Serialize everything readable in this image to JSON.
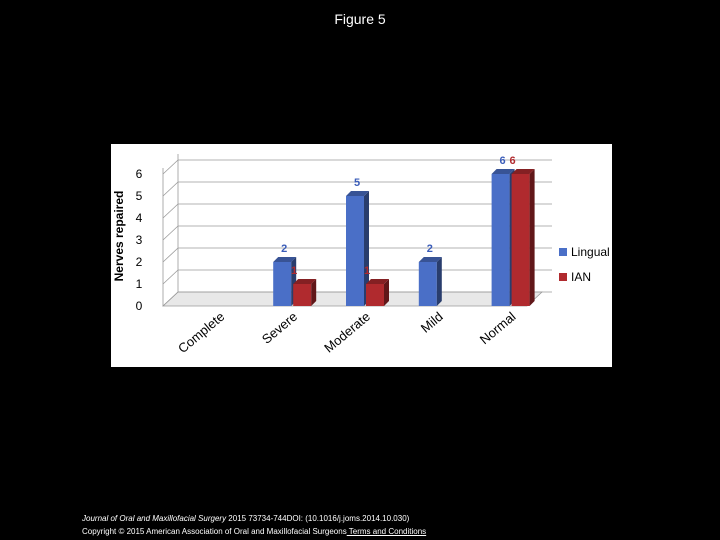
{
  "figure_title": "Figure 5",
  "footer": {
    "journal": "Journal of Oral and Maxillofacial Surgery",
    "citation": " 2015 73734-744DOI: (10.1016/j.joms.2014.10.030)",
    "copyright": "Copyright © 2015 American Association of Oral and Maxillofacial Surgeons",
    "terms_link": " Terms and Conditions"
  },
  "colors": {
    "lingual": "#4a6fc7",
    "ian": "#b02a2e"
  },
  "chart_data": {
    "type": "bar",
    "ylabel": "Nerves repaired",
    "xlabel": "",
    "ylim": [
      0,
      6
    ],
    "yticks": [
      "0",
      "1",
      "2",
      "3",
      "4",
      "5",
      "6"
    ],
    "categories": [
      "Complete",
      "Severe",
      "Moderate",
      "Mild",
      "Normal"
    ],
    "series": [
      {
        "name": "Lingual",
        "values": [
          0,
          2,
          5,
          2,
          6
        ],
        "labels": [
          "",
          "2",
          "5",
          "2",
          "6"
        ]
      },
      {
        "name": "IAN",
        "values": [
          0,
          1,
          1,
          0,
          6
        ],
        "labels": [
          "",
          "1",
          "1",
          "",
          "6"
        ]
      }
    ],
    "legend": "right",
    "grid": true
  }
}
